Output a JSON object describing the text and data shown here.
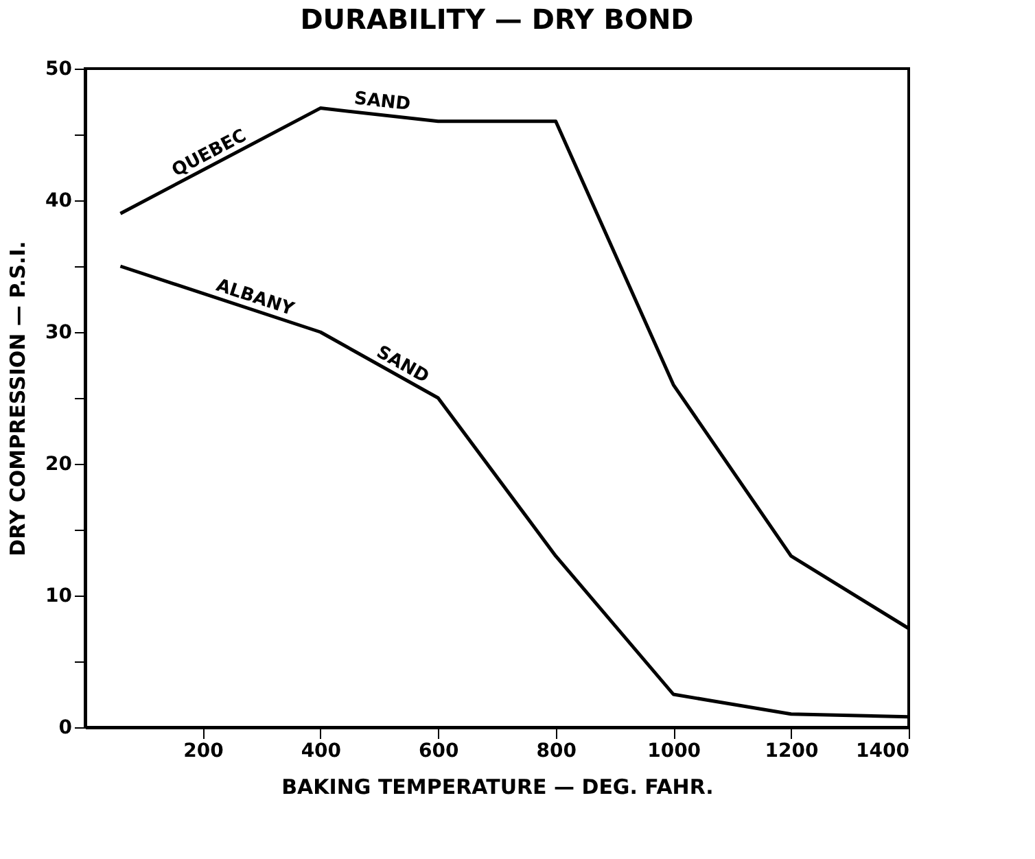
{
  "chart_data": {
    "type": "line",
    "title": "DURABILITY — DRY BOND",
    "xlabel": "BAKING TEMPERATURE — DEG. FAHR.",
    "ylabel": "DRY COMPRESSION — P.S.I.",
    "x": [
      60,
      400,
      600,
      800,
      1000,
      1200,
      1400
    ],
    "series": [
      {
        "color": "#000000",
        "values": [
          39,
          47,
          46,
          46,
          26,
          13,
          7.5
        ]
      },
      {
        "color": "#000000",
        "values": [
          35,
          30,
          25,
          13,
          2.5,
          1,
          0.8
        ]
      }
    ],
    "annotations": [
      {
        "text": "QUEBEC",
        "x": 230,
        "y": 43
      },
      {
        "text": "SAND",
        "x": 500,
        "y": 46.5
      },
      {
        "text": "ALBANY",
        "x": 275,
        "y": 31.8
      },
      {
        "text": "SAND",
        "x": 520,
        "y": 27
      }
    ],
    "xlim": [
      0,
      1400
    ],
    "xticks": [
      200,
      400,
      600,
      800,
      1000,
      1200,
      1400
    ],
    "ylim": [
      0,
      50
    ],
    "yticks": [
      0,
      {
        "value": 5,
        "label": null
      },
      10,
      {
        "value": 15,
        "label": null
      },
      20,
      {
        "value": 25,
        "label": null
      },
      30,
      {
        "value": 35,
        "label": null
      },
      40,
      {
        "value": 45,
        "label": null
      },
      50
    ],
    "grid": false,
    "marker": "none",
    "line_style": "solid"
  }
}
